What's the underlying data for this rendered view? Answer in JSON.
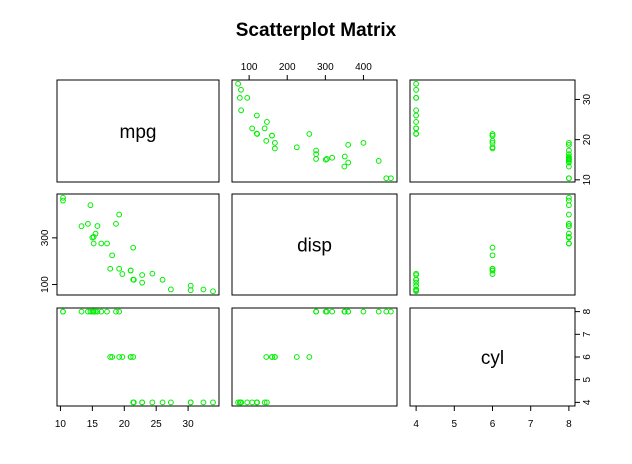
{
  "chart_data": {
    "type": "scatter",
    "title": "Scatterplot Matrix",
    "point_color": "#00ee00",
    "frame_color": "#000000",
    "variables": [
      {
        "name": "mpg",
        "ticks": [
          10,
          15,
          20,
          25,
          30
        ],
        "tick_labels": [
          "10",
          "15",
          "20",
          "25",
          "30"
        ],
        "range": [
          10.4,
          33.9
        ]
      },
      {
        "name": "disp",
        "ticks": [
          100,
          200,
          300,
          400
        ],
        "tick_labels": [
          "100",
          "200",
          "300",
          "400"
        ],
        "range": [
          71.1,
          472.0
        ]
      },
      {
        "name": "cyl",
        "ticks": [
          4,
          5,
          6,
          7,
          8
        ],
        "tick_labels": [
          "4",
          "5",
          "6",
          "7",
          "8"
        ],
        "range": [
          4,
          8
        ]
      }
    ],
    "axes": {
      "top": {
        "column": 1,
        "ticks": [
          100,
          200,
          300,
          400
        ],
        "labels": [
          "100",
          "200",
          "300",
          "400"
        ]
      },
      "bottom": {
        "column": 0,
        "ticks": [
          10,
          15,
          20,
          25,
          30
        ],
        "labels": [
          "10",
          "15",
          "20",
          "25",
          "30"
        ]
      },
      "left": {
        "row": 1,
        "ticks": [
          100,
          300
        ],
        "labels": [
          "100",
          "300"
        ]
      },
      "right_top": {
        "row": 0,
        "ticks": [
          10,
          20,
          30
        ],
        "labels": [
          "10",
          "20",
          "30"
        ]
      },
      "right_bottom": {
        "row": 2,
        "ticks": [
          4,
          5,
          6,
          7,
          8
        ],
        "labels": [
          "4",
          "5",
          "6",
          "7",
          "8"
        ]
      },
      "bottom_right": {
        "column": 2,
        "ticks": [
          4,
          5,
          6,
          7,
          8
        ],
        "labels": [
          "4",
          "5",
          "6",
          "7",
          "8"
        ]
      }
    },
    "observations": [
      {
        "mpg": 21.0,
        "disp": 160.0,
        "cyl": 6
      },
      {
        "mpg": 21.0,
        "disp": 160.0,
        "cyl": 6
      },
      {
        "mpg": 22.8,
        "disp": 108.0,
        "cyl": 4
      },
      {
        "mpg": 21.4,
        "disp": 258.0,
        "cyl": 6
      },
      {
        "mpg": 18.7,
        "disp": 360.0,
        "cyl": 8
      },
      {
        "mpg": 18.1,
        "disp": 225.0,
        "cyl": 6
      },
      {
        "mpg": 14.3,
        "disp": 360.0,
        "cyl": 8
      },
      {
        "mpg": 24.4,
        "disp": 146.7,
        "cyl": 4
      },
      {
        "mpg": 22.8,
        "disp": 140.8,
        "cyl": 4
      },
      {
        "mpg": 19.2,
        "disp": 167.6,
        "cyl": 6
      },
      {
        "mpg": 17.8,
        "disp": 167.6,
        "cyl": 6
      },
      {
        "mpg": 16.4,
        "disp": 275.8,
        "cyl": 8
      },
      {
        "mpg": 17.3,
        "disp": 275.8,
        "cyl": 8
      },
      {
        "mpg": 15.2,
        "disp": 275.8,
        "cyl": 8
      },
      {
        "mpg": 10.4,
        "disp": 472.0,
        "cyl": 8
      },
      {
        "mpg": 10.4,
        "disp": 460.0,
        "cyl": 8
      },
      {
        "mpg": 14.7,
        "disp": 440.0,
        "cyl": 8
      },
      {
        "mpg": 32.4,
        "disp": 78.7,
        "cyl": 4
      },
      {
        "mpg": 30.4,
        "disp": 75.7,
        "cyl": 4
      },
      {
        "mpg": 33.9,
        "disp": 71.1,
        "cyl": 4
      },
      {
        "mpg": 21.5,
        "disp": 120.1,
        "cyl": 4
      },
      {
        "mpg": 15.5,
        "disp": 318.0,
        "cyl": 8
      },
      {
        "mpg": 15.2,
        "disp": 304.0,
        "cyl": 8
      },
      {
        "mpg": 13.3,
        "disp": 350.0,
        "cyl": 8
      },
      {
        "mpg": 19.2,
        "disp": 400.0,
        "cyl": 8
      },
      {
        "mpg": 27.3,
        "disp": 79.0,
        "cyl": 4
      },
      {
        "mpg": 26.0,
        "disp": 120.3,
        "cyl": 4
      },
      {
        "mpg": 30.4,
        "disp": 95.1,
        "cyl": 4
      },
      {
        "mpg": 15.8,
        "disp": 351.0,
        "cyl": 8
      },
      {
        "mpg": 19.7,
        "disp": 145.0,
        "cyl": 6
      },
      {
        "mpg": 15.0,
        "disp": 301.0,
        "cyl": 8
      },
      {
        "mpg": 21.4,
        "disp": 121.0,
        "cyl": 4
      }
    ]
  }
}
